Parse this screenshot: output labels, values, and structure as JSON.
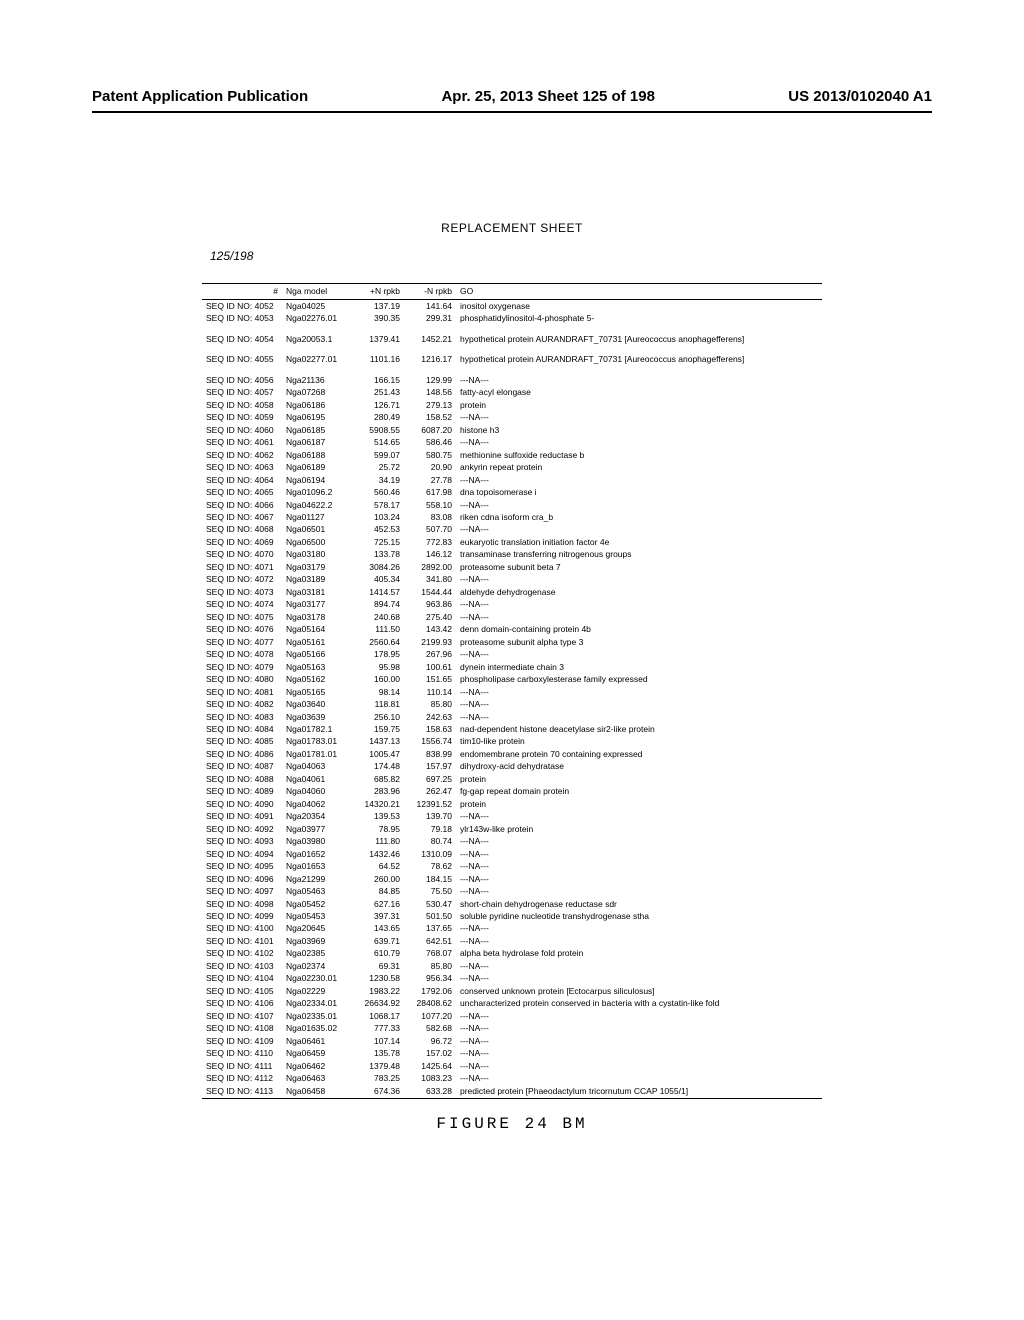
{
  "header": {
    "left": "Patent Application Publication",
    "center": "Apr. 25, 2013  Sheet 125 of 198",
    "right": "US 2013/0102040 A1"
  },
  "replacement": "REPLACEMENT SHEET",
  "page_frac": "125/198",
  "figure_caption": "FIGURE 24 BM",
  "columns": [
    "#",
    "Nga model",
    "+N rpkb",
    "-N rpkb",
    "GO"
  ],
  "rows": [
    [
      "SEQ ID NO: 4052",
      "Nga04025",
      "137.19",
      "141.64",
      "inositol oxygenase"
    ],
    [
      "SEQ ID NO: 4053",
      "Nga02276.01",
      "390.35",
      "299.31",
      "phosphatidylinositol-4-phosphate 5-"
    ],
    [
      "SEQ ID NO: 4054",
      "Nga20053.1",
      "1379.41",
      "1452.21",
      "hypothetical protein AURANDRAFT_70731 [Aureococcus anophagefferens]"
    ],
    [
      "SEQ ID NO: 4055",
      "Nga02277.01",
      "1101.16",
      "1216.17",
      "hypothetical protein AURANDRAFT_70731 [Aureococcus anophagefferens]"
    ],
    [
      "SEQ ID NO: 4056",
      "Nga21136",
      "166.15",
      "129.99",
      "---NA---"
    ],
    [
      "SEQ ID NO: 4057",
      "Nga07268",
      "251.43",
      "148.56",
      "fatty-acyl elongase"
    ],
    [
      "SEQ ID NO: 4058",
      "Nga06186",
      "126.71",
      "279.13",
      "protein"
    ],
    [
      "SEQ ID NO: 4059",
      "Nga06195",
      "280.49",
      "158.52",
      "---NA---"
    ],
    [
      "SEQ ID NO: 4060",
      "Nga06185",
      "5908.55",
      "6087.20",
      "histone h3"
    ],
    [
      "SEQ ID NO: 4061",
      "Nga06187",
      "514.65",
      "586.46",
      "---NA---"
    ],
    [
      "SEQ ID NO: 4062",
      "Nga06188",
      "599.07",
      "580.75",
      "methionine sulfoxide reductase b"
    ],
    [
      "SEQ ID NO: 4063",
      "Nga06189",
      "25.72",
      "20.90",
      "ankyrin repeat protein"
    ],
    [
      "SEQ ID NO: 4064",
      "Nga06194",
      "34.19",
      "27.78",
      "---NA---"
    ],
    [
      "SEQ ID NO: 4065",
      "Nga01096.2",
      "560.46",
      "617.98",
      "dna topoisomerase i"
    ],
    [
      "SEQ ID NO: 4066",
      "Nga04622.2",
      "578.17",
      "558.10",
      "---NA---"
    ],
    [
      "SEQ ID NO: 4067",
      "Nga01127",
      "103.24",
      "83.08",
      "riken cdna isoform cra_b"
    ],
    [
      "SEQ ID NO: 4068",
      "Nga06501",
      "452.53",
      "507.70",
      "---NA---"
    ],
    [
      "SEQ ID NO: 4069",
      "Nga06500",
      "725.15",
      "772.83",
      "eukaryotic translation initiation factor 4e"
    ],
    [
      "SEQ ID NO: 4070",
      "Nga03180",
      "133.78",
      "146.12",
      "transaminase transferring nitrogenous groups"
    ],
    [
      "SEQ ID NO: 4071",
      "Nga03179",
      "3084.26",
      "2892.00",
      "proteasome subunit beta 7"
    ],
    [
      "SEQ ID NO: 4072",
      "Nga03189",
      "405.34",
      "341.80",
      "---NA---"
    ],
    [
      "SEQ ID NO: 4073",
      "Nga03181",
      "1414.57",
      "1544.44",
      "aldehyde dehydrogenase"
    ],
    [
      "SEQ ID NO: 4074",
      "Nga03177",
      "894.74",
      "963.86",
      "---NA---"
    ],
    [
      "SEQ ID NO: 4075",
      "Nga03178",
      "240.68",
      "275.40",
      "---NA---"
    ],
    [
      "SEQ ID NO: 4076",
      "Nga05164",
      "111.50",
      "143.42",
      "denn domain-containing protein 4b"
    ],
    [
      "SEQ ID NO: 4077",
      "Nga05161",
      "2560.64",
      "2199.93",
      "proteasome subunit alpha type 3"
    ],
    [
      "SEQ ID NO: 4078",
      "Nga05166",
      "178.95",
      "267.96",
      "---NA---"
    ],
    [
      "SEQ ID NO: 4079",
      "Nga05163",
      "95.98",
      "100.61",
      "dynein intermediate chain 3"
    ],
    [
      "SEQ ID NO: 4080",
      "Nga05162",
      "160.00",
      "151.65",
      "phospholipase carboxylesterase family expressed"
    ],
    [
      "SEQ ID NO: 4081",
      "Nga05165",
      "98.14",
      "110.14",
      "---NA---"
    ],
    [
      "SEQ ID NO: 4082",
      "Nga03640",
      "118.81",
      "85.80",
      "---NA---"
    ],
    [
      "SEQ ID NO: 4083",
      "Nga03639",
      "256.10",
      "242.63",
      "---NA---"
    ],
    [
      "SEQ ID NO: 4084",
      "Nga01782.1",
      "159.75",
      "158.63",
      "nad-dependent histone deacetylase sir2-like protein"
    ],
    [
      "SEQ ID NO: 4085",
      "Nga01783.01",
      "1437.13",
      "1556.74",
      "tim10-like protein"
    ],
    [
      "SEQ ID NO: 4086",
      "Nga01781.01",
      "1005.47",
      "838.99",
      "endomembrane protein 70 containing expressed"
    ],
    [
      "SEQ ID NO: 4087",
      "Nga04063",
      "174.48",
      "157.97",
      "dihydroxy-acid dehydratase"
    ],
    [
      "SEQ ID NO: 4088",
      "Nga04061",
      "685.82",
      "697.25",
      "protein"
    ],
    [
      "SEQ ID NO: 4089",
      "Nga04060",
      "283.96",
      "262.47",
      "fg-gap repeat domain protein"
    ],
    [
      "SEQ ID NO: 4090",
      "Nga04062",
      "14320.21",
      "12391.52",
      "protein"
    ],
    [
      "SEQ ID NO: 4091",
      "Nga20354",
      "139.53",
      "139.70",
      "---NA---"
    ],
    [
      "SEQ ID NO: 4092",
      "Nga03977",
      "78.95",
      "79.18",
      "ylr143w-like protein"
    ],
    [
      "SEQ ID NO: 4093",
      "Nga03980",
      "111.80",
      "80.74",
      "---NA---"
    ],
    [
      "SEQ ID NO: 4094",
      "Nga01652",
      "1432.46",
      "1310.09",
      "---NA---"
    ],
    [
      "SEQ ID NO: 4095",
      "Nga01653",
      "64.52",
      "78.62",
      "---NA---"
    ],
    [
      "SEQ ID NO: 4096",
      "Nga21299",
      "260.00",
      "184.15",
      "---NA---"
    ],
    [
      "SEQ ID NO: 4097",
      "Nga05463",
      "84.85",
      "75.50",
      "---NA---"
    ],
    [
      "SEQ ID NO: 4098",
      "Nga05452",
      "627.16",
      "530.47",
      "short-chain dehydrogenase reductase sdr"
    ],
    [
      "SEQ ID NO: 4099",
      "Nga05453",
      "397.31",
      "501.50",
      "soluble pyridine nucleotide transhydrogenase stha"
    ],
    [
      "SEQ ID NO: 4100",
      "Nga20645",
      "143.65",
      "137.65",
      "---NA---"
    ],
    [
      "SEQ ID NO: 4101",
      "Nga03969",
      "639.71",
      "642.51",
      "---NA---"
    ],
    [
      "SEQ ID NO: 4102",
      "Nga02385",
      "610.79",
      "768.07",
      "alpha beta hydrolase fold protein"
    ],
    [
      "SEQ ID NO: 4103",
      "Nga02374",
      "69.31",
      "85.80",
      "---NA---"
    ],
    [
      "SEQ ID NO: 4104",
      "Nga02230.01",
      "1230.58",
      "956.34",
      "---NA---"
    ],
    [
      "SEQ ID NO: 4105",
      "Nga02229",
      "1983.22",
      "1792.06",
      "conserved unknown protein [Ectocarpus siliculosus]"
    ],
    [
      "SEQ ID NO: 4106",
      "Nga02334.01",
      "26634.92",
      "28408.62",
      "uncharacterized protein conserved in bacteria with a cystatin-like fold"
    ],
    [
      "SEQ ID NO: 4107",
      "Nga02335.01",
      "1068.17",
      "1077.20",
      "---NA---"
    ],
    [
      "SEQ ID NO: 4108",
      "Nga01635.02",
      "777.33",
      "582.68",
      "---NA---"
    ],
    [
      "SEQ ID NO: 4109",
      "Nga06461",
      "107.14",
      "96.72",
      "---NA---"
    ],
    [
      "SEQ ID NO: 4110",
      "Nga06459",
      "135.78",
      "157.02",
      "---NA---"
    ],
    [
      "SEQ ID NO: 4111",
      "Nga06462",
      "1379.48",
      "1425.64",
      "---NA---"
    ],
    [
      "SEQ ID NO: 4112",
      "Nga06463",
      "783.25",
      "1083.23",
      "---NA---"
    ],
    [
      "SEQ ID NO: 4113",
      "Nga06458",
      "674.36",
      "633.28",
      "predicted protein [Phaeodactylum tricornutum CCAP 1055/1]"
    ]
  ],
  "spacer_after": [
    1,
    2,
    3
  ]
}
